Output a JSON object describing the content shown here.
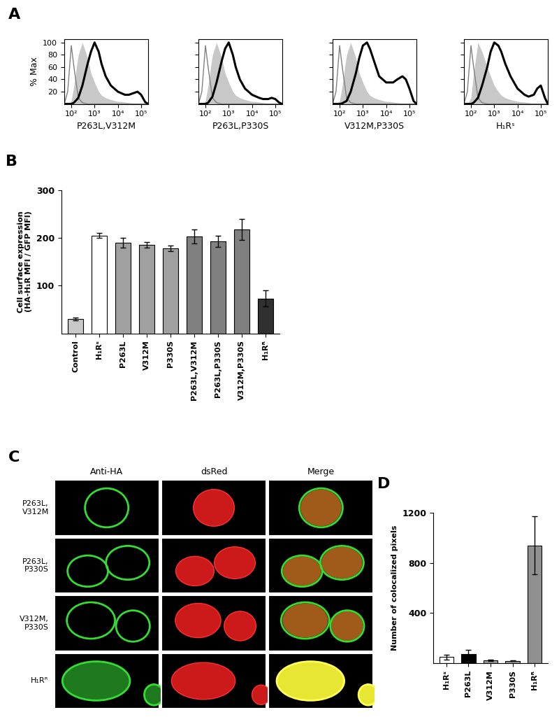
{
  "chart_data": [
    {
      "panel": "A",
      "type": "line",
      "xlabel": "P263L,V312M",
      "ylabel": "% Max",
      "log": "x",
      "xlim": [
        50,
        200000
      ],
      "xticks": [
        {
          "value": 100,
          "label": "10²"
        },
        {
          "value": 1000,
          "label": "10³"
        },
        {
          "value": 10000,
          "label": "10⁴"
        },
        {
          "value": 100000,
          "label": "10⁵"
        }
      ],
      "ylim": [
        0,
        105
      ],
      "yticks": [
        20,
        40,
        60,
        80,
        100
      ],
      "tick_labels": true,
      "x": [
        50,
        70,
        100,
        130,
        200,
        300,
        500,
        700,
        1000,
        1500,
        2000,
        3000,
        5000,
        10000,
        20000,
        30000,
        50000,
        70000,
        100000,
        150000,
        200000
      ],
      "series": [
        {
          "type": "area",
          "color": "#c8c8c8",
          "values": [
            0,
            0,
            5,
            30,
            80,
            100,
            75,
            50,
            35,
            20,
            14,
            10,
            7,
            4,
            3,
            2,
            1,
            0,
            0,
            0,
            0
          ]
        },
        {
          "type": "line",
          "color": "#808080",
          "values": [
            0,
            20,
            95,
            60,
            10,
            2,
            0,
            0,
            0,
            0,
            0,
            0,
            0,
            0,
            0,
            0,
            0,
            0,
            0,
            0,
            0
          ]
        },
        {
          "type": "line",
          "color": "#000000",
          "values": [
            0,
            0,
            0,
            2,
            10,
            30,
            65,
            85,
            100,
            85,
            65,
            45,
            30,
            20,
            15,
            15,
            18,
            20,
            15,
            3,
            0
          ]
        }
      ]
    },
    {
      "type": "line",
      "xlabel": "P263L,P330S",
      "log": "x",
      "xlim": [
        50,
        200000
      ],
      "xticks": [
        {
          "value": 100,
          "label": "10²"
        },
        {
          "value": 1000,
          "label": "10³"
        },
        {
          "value": 10000,
          "label": "10⁴"
        },
        {
          "value": 100000,
          "label": "10⁵"
        }
      ],
      "ylim": [
        0,
        105
      ],
      "yticks": [
        20,
        40,
        60,
        80,
        100
      ],
      "tick_labels": "x",
      "x": [
        50,
        70,
        100,
        130,
        200,
        300,
        500,
        700,
        1000,
        1500,
        2000,
        3000,
        5000,
        10000,
        20000,
        30000,
        50000,
        70000,
        100000,
        150000,
        200000
      ],
      "series": [
        {
          "type": "area",
          "color": "#c8c8c8",
          "values": [
            0,
            0,
            5,
            30,
            80,
            100,
            75,
            50,
            35,
            20,
            14,
            10,
            7,
            4,
            3,
            2,
            1,
            0,
            0,
            0,
            0
          ]
        },
        {
          "type": "line",
          "color": "#808080",
          "values": [
            0,
            20,
            95,
            60,
            10,
            2,
            0,
            0,
            0,
            0,
            0,
            0,
            0,
            0,
            0,
            0,
            0,
            0,
            0,
            0,
            0
          ]
        },
        {
          "type": "line",
          "color": "#000000",
          "values": [
            0,
            0,
            0,
            2,
            12,
            35,
            70,
            90,
            100,
            80,
            60,
            40,
            25,
            15,
            10,
            8,
            8,
            10,
            8,
            2,
            0
          ]
        }
      ]
    },
    {
      "type": "line",
      "xlabel": "V312M,P330S",
      "log": "x",
      "xlim": [
        50,
        200000
      ],
      "xticks": [
        {
          "value": 100,
          "label": "10²"
        },
        {
          "value": 1000,
          "label": "10³"
        },
        {
          "value": 10000,
          "label": "10⁴"
        },
        {
          "value": 100000,
          "label": "10⁵"
        }
      ],
      "ylim": [
        0,
        105
      ],
      "yticks": [
        20,
        40,
        60,
        80,
        100
      ],
      "tick_labels": "x",
      "x": [
        50,
        70,
        100,
        130,
        200,
        300,
        500,
        700,
        1000,
        1500,
        2000,
        3000,
        5000,
        10000,
        20000,
        30000,
        50000,
        70000,
        100000,
        150000,
        200000
      ],
      "series": [
        {
          "type": "area",
          "color": "#c8c8c8",
          "values": [
            0,
            0,
            5,
            30,
            80,
            100,
            75,
            50,
            35,
            20,
            14,
            10,
            7,
            4,
            3,
            2,
            1,
            0,
            0,
            0,
            0
          ]
        },
        {
          "type": "line",
          "color": "#808080",
          "values": [
            0,
            20,
            95,
            60,
            10,
            2,
            0,
            0,
            0,
            0,
            0,
            0,
            0,
            0,
            0,
            0,
            0,
            0,
            0,
            0,
            0
          ]
        },
        {
          "type": "line",
          "color": "#000000",
          "values": [
            0,
            0,
            0,
            1,
            5,
            20,
            50,
            75,
            95,
            100,
            90,
            70,
            45,
            35,
            35,
            40,
            45,
            40,
            25,
            5,
            0
          ]
        }
      ]
    },
    {
      "type": "line",
      "xlabel": "H₁Rˢ",
      "log": "x",
      "xlim": [
        50,
        200000
      ],
      "xticks": [
        {
          "value": 100,
          "label": "10²"
        },
        {
          "value": 1000,
          "label": "10³"
        },
        {
          "value": 10000,
          "label": "10⁴"
        },
        {
          "value": 100000,
          "label": "10⁵"
        }
      ],
      "ylim": [
        0,
        105
      ],
      "yticks": [
        20,
        40,
        60,
        80,
        100
      ],
      "tick_labels": "x",
      "x": [
        50,
        70,
        100,
        130,
        200,
        300,
        500,
        700,
        1000,
        1500,
        2000,
        3000,
        5000,
        10000,
        20000,
        30000,
        50000,
        70000,
        100000,
        150000,
        200000
      ],
      "series": [
        {
          "type": "area",
          "color": "#c8c8c8",
          "values": [
            0,
            0,
            10,
            50,
            100,
            85,
            60,
            45,
            30,
            20,
            14,
            10,
            7,
            4,
            3,
            2,
            1,
            0,
            0,
            0,
            0
          ]
        },
        {
          "type": "line",
          "color": "#808080",
          "values": [
            0,
            20,
            95,
            60,
            10,
            2,
            0,
            0,
            0,
            0,
            0,
            0,
            0,
            0,
            0,
            0,
            0,
            0,
            0,
            0,
            0
          ]
        },
        {
          "type": "line",
          "color": "#000000",
          "values": [
            0,
            0,
            0,
            2,
            10,
            30,
            60,
            85,
            100,
            95,
            85,
            65,
            45,
            25,
            15,
            12,
            15,
            25,
            30,
            10,
            0
          ]
        }
      ]
    },
    {
      "panel": "B",
      "type": "bar",
      "ylabel": "Cell surface expression\n(HA-H₁R MFI / GFP MFI)",
      "categories": [
        "Control",
        "H₁Rˢ",
        "P263L",
        "V312M",
        "P330S",
        "P263L,V312M",
        "P263L,P330S",
        "V312M,P330S",
        "H₁Rᴿ"
      ],
      "values": [
        30,
        205,
        190,
        185,
        178,
        203,
        193,
        218,
        73
      ],
      "errors": [
        3,
        5,
        10,
        6,
        6,
        15,
        12,
        22,
        17
      ],
      "colors": [
        "#c8c8c8",
        "#ffffff",
        "#a0a0a0",
        "#a0a0a0",
        "#a0a0a0",
        "#808080",
        "#808080",
        "#808080",
        "#303030"
      ],
      "ylim": [
        0,
        300
      ],
      "yticks": [
        100,
        200,
        300
      ]
    },
    {
      "panel": "D",
      "type": "bar",
      "ylabel": "Number of colocalized pixels",
      "categories": [
        "H₁Rˢ",
        "P263L",
        "V312M",
        "P330S",
        "H₁Rᴿ"
      ],
      "values": [
        50,
        75,
        25,
        20,
        940
      ],
      "errors": [
        20,
        30,
        5,
        5,
        230
      ],
      "colors": [
        "#ffffff",
        "#000000",
        "#a0a0a0",
        "#a0a0a0",
        "#909090"
      ],
      "ylim": [
        0,
        1200
      ],
      "yticks": [
        400,
        800,
        1200
      ]
    }
  ],
  "images": {
    "panel": "C",
    "columns": [
      "Anti-HA",
      "dsRed",
      "Merge"
    ],
    "rows": [
      "P263L,\nV312M",
      "P263L,\nP330S",
      "V312M,\nP330S",
      "H₁Rᴿ"
    ]
  }
}
